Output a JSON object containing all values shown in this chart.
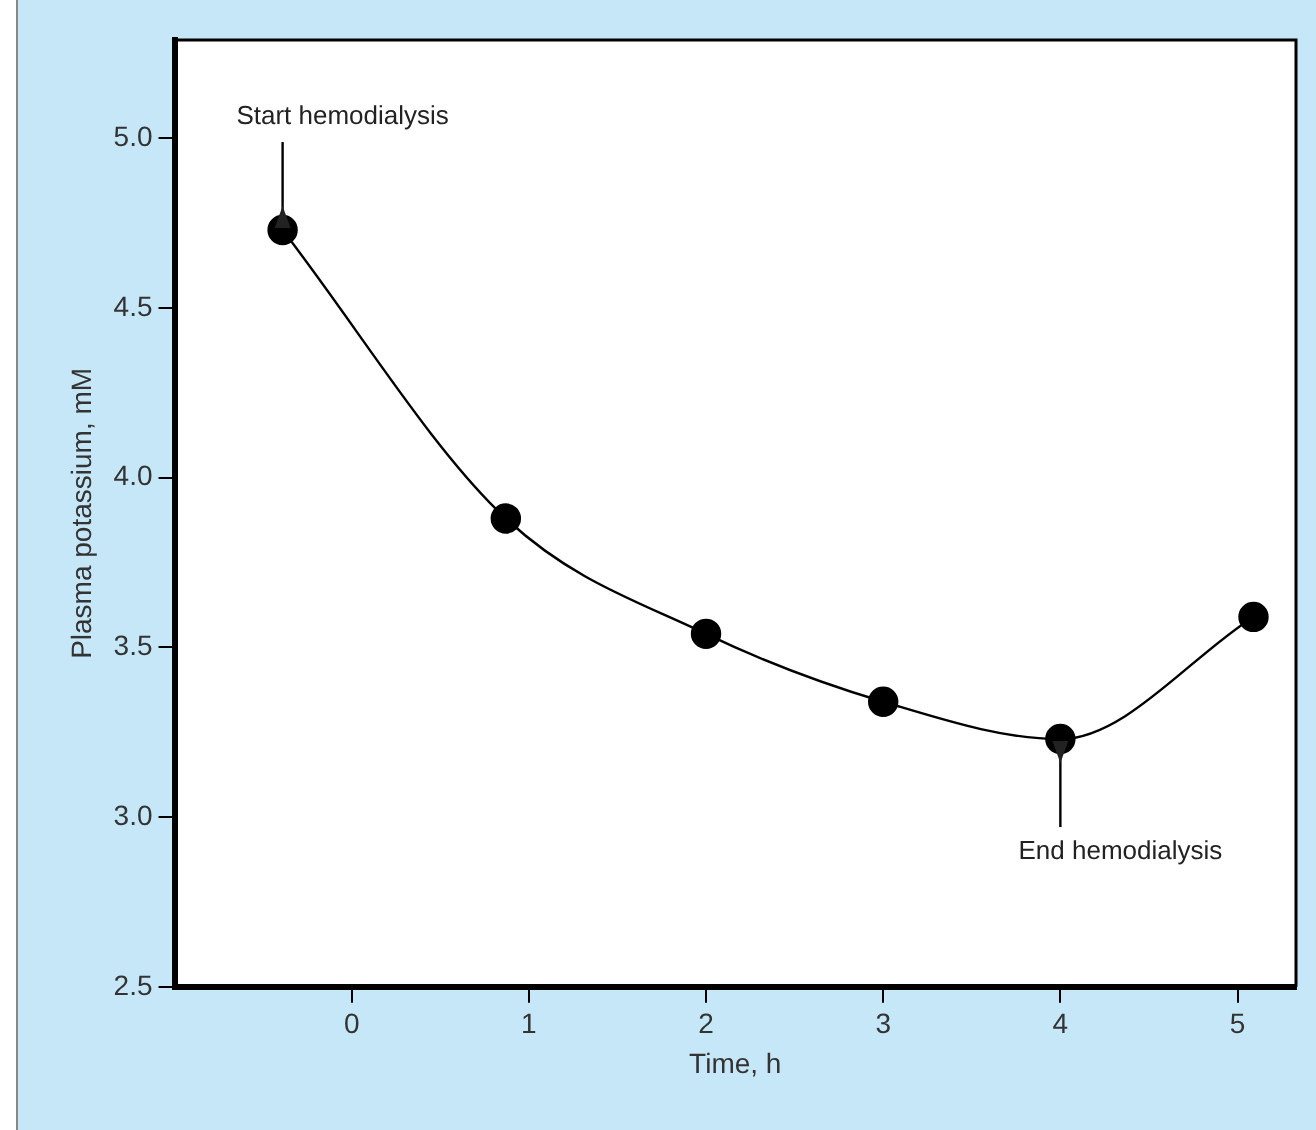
{
  "chart_data": {
    "type": "line",
    "xlabel": "Time, h",
    "ylabel": "Plasma potassium, mM",
    "x": [
      -0.39,
      0.87,
      2.0,
      3.0,
      4.0,
      5.09
    ],
    "series": [
      {
        "color": "#000000",
        "values": [
          4.73,
          3.88,
          3.54,
          3.34,
          3.23,
          3.59
        ]
      }
    ],
    "xlim": [
      -1.0,
      5.33
    ],
    "xticks": [
      0,
      1,
      2,
      3,
      4,
      5
    ],
    "ylim": [
      2.5,
      5.29
    ],
    "yticks": [
      {
        "value": 2.5,
        "label": "2.5"
      },
      {
        "value": 3,
        "label": "3.0"
      },
      {
        "value": 3.5,
        "label": "3.5"
      },
      {
        "value": 4,
        "label": "4.0"
      },
      {
        "value": 4.5,
        "label": "4.5"
      },
      {
        "value": 5,
        "label": "5.0"
      }
    ],
    "marker": "circle",
    "line_style": "solid",
    "grid": false,
    "legend": false,
    "annotations": [
      {
        "text": "Start hemodialysis",
        "x": -0.39,
        "y": 4.73
      },
      {
        "text": "End hemodialysis",
        "x": 4.0,
        "y": 3.23
      }
    ]
  }
}
